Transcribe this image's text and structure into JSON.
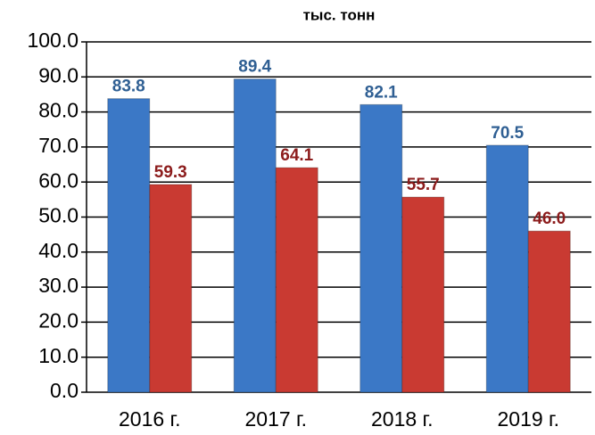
{
  "chart_data": {
    "type": "bar",
    "title": "тыс. тонн",
    "categories": [
      "2016 г.",
      "2017 г.",
      "2018 г.",
      "2019 г."
    ],
    "series": [
      {
        "color": "#3b78c6",
        "label_color": "#2f5f93",
        "values": [
          83.8,
          89.4,
          82.1,
          70.5
        ],
        "value_labels": [
          "83.8",
          "89.4",
          "82.1",
          "70.5"
        ]
      },
      {
        "color": "#c93a32",
        "label_color": "#8c1c1c",
        "values": [
          59.3,
          64.1,
          55.7,
          46.0
        ],
        "value_labels": [
          "59.3",
          "64.1",
          "55.7",
          "46.0"
        ]
      }
    ],
    "ylim": [
      0,
      100
    ],
    "yticks": [
      {
        "value": 0,
        "label": "0.0"
      },
      {
        "value": 10,
        "label": "10.0"
      },
      {
        "value": 20,
        "label": "20.0"
      },
      {
        "value": 30,
        "label": "30.0"
      },
      {
        "value": 40,
        "label": "40.0"
      },
      {
        "value": 50,
        "label": "50.0"
      },
      {
        "value": 60,
        "label": "60.0"
      },
      {
        "value": 70,
        "label": "70.0"
      },
      {
        "value": 80,
        "label": "80.0"
      },
      {
        "value": 90,
        "label": "90.0"
      },
      {
        "value": 100,
        "label": "100.0"
      }
    ],
    "grid": true
  }
}
